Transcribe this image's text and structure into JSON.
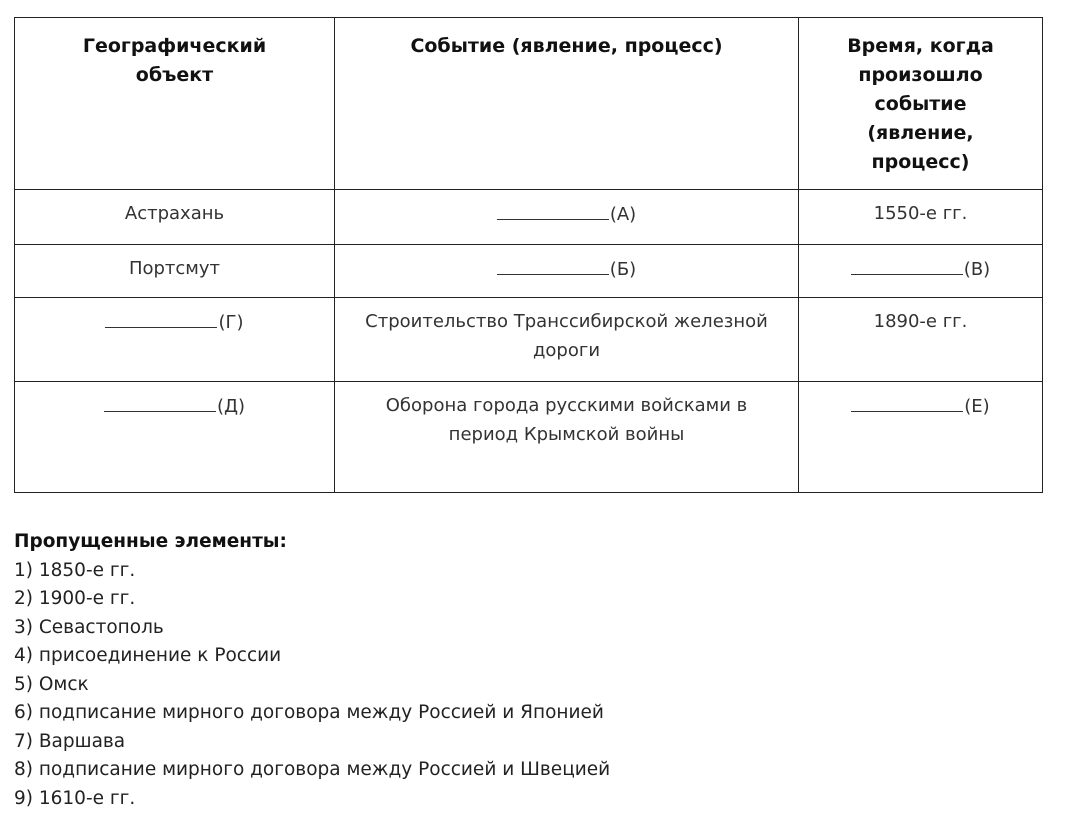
{
  "table": {
    "headers": [
      "Географический объект",
      "Событие (явление, процесс)",
      "Время, когда произошло событие (явление, процесс)"
    ],
    "rows": [
      {
        "object": "Астрахань",
        "object_blank": false,
        "event": "(А)",
        "event_blank": true,
        "time": "1550-е гг.",
        "time_blank": false
      },
      {
        "object": "Портсмут",
        "object_blank": false,
        "event": "(Б)",
        "event_blank": true,
        "time": "(В)",
        "time_blank": true
      },
      {
        "object": "(Г)",
        "object_blank": true,
        "event": "Строительство Транссибирской железной дороги",
        "event_blank": false,
        "time": "1890-е гг.",
        "time_blank": false
      },
      {
        "object": "(Д)",
        "object_blank": true,
        "event": "Оборона города русскими войсками в период Крымской войны",
        "event_blank": false,
        "time": "(Е)",
        "time_blank": true
      }
    ]
  },
  "missing": {
    "title": "Пропущенные элементы:",
    "items": [
      "1) 1850-е гг.",
      "2) 1900-е гг.",
      "3) Севастополь",
      "4) присоединение к России",
      "5) Омск",
      "6) подписание мирного договора между Россией и Японией",
      "7) Варшава",
      "8) подписание мирного договора между Россией и Швецией",
      "9) 1610-е гг."
    ]
  }
}
